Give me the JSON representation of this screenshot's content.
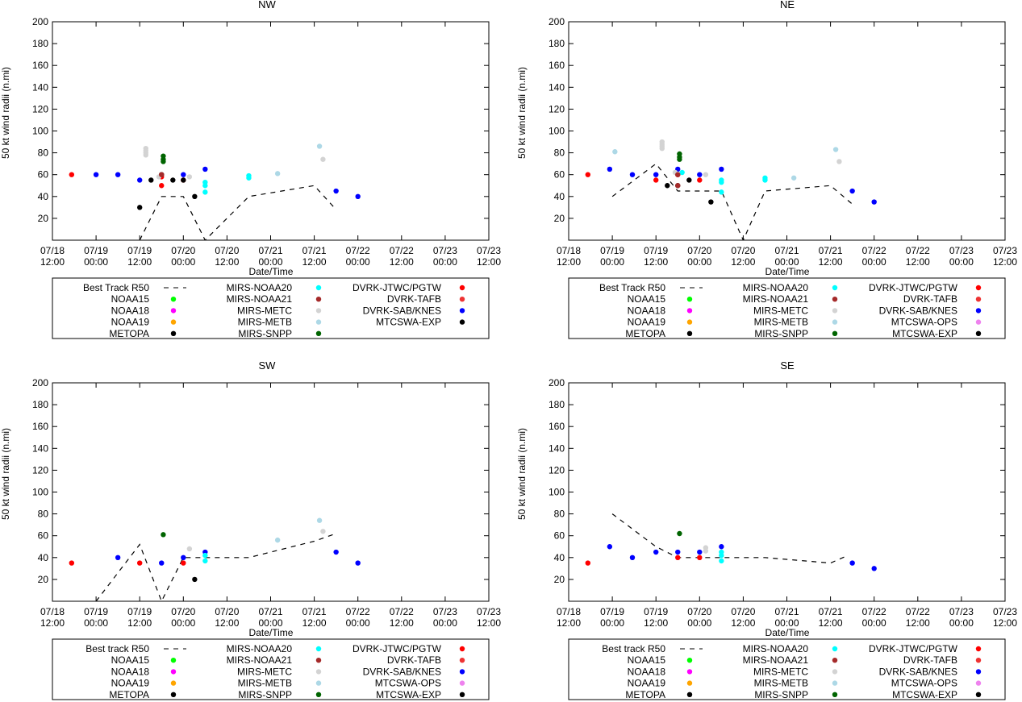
{
  "ylabel": "50 kt wind radii (n.mi)",
  "xlabel": "Date/Time",
  "ylim": [
    0,
    200
  ],
  "yticks": [
    20,
    40,
    60,
    80,
    100,
    120,
    140,
    160,
    180,
    200
  ],
  "xticks": [
    {
      "t": 0,
      "d": "07/18",
      "h": "12:00"
    },
    {
      "t": 0.5,
      "d": "07/19",
      "h": "00:00"
    },
    {
      "t": 1,
      "d": "07/19",
      "h": "12:00"
    },
    {
      "t": 1.5,
      "d": "07/20",
      "h": "00:00"
    },
    {
      "t": 2,
      "d": "07/20",
      "h": "12:00"
    },
    {
      "t": 2.5,
      "d": "07/21",
      "h": "00:00"
    },
    {
      "t": 3,
      "d": "07/21",
      "h": "12:00"
    },
    {
      "t": 3.5,
      "d": "07/22",
      "h": "00:00"
    },
    {
      "t": 4,
      "d": "07/22",
      "h": "12:00"
    },
    {
      "t": 4.5,
      "d": "07/23",
      "h": "00:00"
    },
    {
      "t": 5,
      "d": "07/23",
      "h": "12:00"
    }
  ],
  "colors": {
    "NOAA15": "#00ff00",
    "NOAA18": "#ff00ff",
    "NOAA19": "#ffa500",
    "METOPA": "#000000",
    "MIRS-NOAA20": "#00ffff",
    "MIRS-NOAA21": "#a52a2a",
    "MIRS-METC": "#d3d3d3",
    "MIRS-METB": "#add8e6",
    "MIRS-SNPP": "#006400",
    "DVRK-JTWC/PGTW": "#ff0000",
    "DVRK-TAFB": "#ee3333",
    "DVRK-SAB/KNES": "#0000ff",
    "MTCSWA-OPS": "#ee82ee",
    "MTCSWA-EXP": "#000000"
  },
  "chart_data": [
    {
      "type": "scatter",
      "title": "NW",
      "best_track_label": "Best Track R50",
      "legend_rows": [
        [
          "NOAA15",
          "MIRS-NOAA21",
          "DVRK-TAFB"
        ],
        [
          "NOAA18",
          "MIRS-METC",
          "DVRK-SAB/KNES"
        ],
        [
          "NOAA19",
          "MIRS-METB",
          "MTCSWA-EXP"
        ],
        [
          "METOPA",
          "MIRS-SNPP",
          ""
        ]
      ],
      "legend_row0": [
        "MIRS-NOAA20",
        "DVRK-JTWC/PGTW"
      ],
      "best_track": [
        [
          1.0,
          0
        ],
        [
          1.25,
          40
        ],
        [
          1.5,
          40
        ],
        [
          1.75,
          0
        ],
        [
          2.25,
          40
        ],
        [
          3.0,
          50
        ],
        [
          3.25,
          28
        ]
      ],
      "series": [
        {
          "name": "DVRK-JTWC/PGTW",
          "points": [
            [
              0.22,
              60
            ],
            [
              1.25,
              50
            ],
            [
              1.25,
              58
            ],
            [
              1.5,
              55
            ]
          ]
        },
        {
          "name": "DVRK-SAB/KNES",
          "points": [
            [
              0.5,
              60
            ],
            [
              0.75,
              60
            ],
            [
              1.0,
              55
            ],
            [
              1.5,
              60
            ],
            [
              1.75,
              65
            ],
            [
              3.25,
              45
            ],
            [
              3.5,
              40
            ]
          ]
        },
        {
          "name": "MTCSWA-EXP",
          "points": [
            [
              1.0,
              30
            ],
            [
              1.13,
              55
            ],
            [
              1.25,
              60
            ],
            [
              1.38,
              55
            ],
            [
              1.5,
              55
            ],
            [
              1.63,
              40
            ]
          ]
        },
        {
          "name": "MIRS-NOAA20",
          "points": [
            [
              1.75,
              44
            ],
            [
              1.75,
              50
            ],
            [
              1.75,
              53
            ],
            [
              2.25,
              57
            ],
            [
              2.25,
              59
            ]
          ]
        },
        {
          "name": "MIRS-SNPP",
          "points": [
            [
              1.27,
              72
            ],
            [
              1.27,
              74
            ],
            [
              1.27,
              77
            ]
          ]
        },
        {
          "name": "MIRS-METC",
          "points": [
            [
              1.07,
              78
            ],
            [
              1.07,
              80
            ],
            [
              1.07,
              82
            ],
            [
              1.07,
              84
            ],
            [
              1.22,
              58
            ],
            [
              1.57,
              58
            ],
            [
              3.1,
              74
            ]
          ]
        },
        {
          "name": "MIRS-METB",
          "points": [
            [
              2.58,
              61
            ],
            [
              3.06,
              86
            ]
          ]
        },
        {
          "name": "MIRS-NOAA21",
          "points": [
            [
              1.25,
              60
            ]
          ]
        }
      ]
    },
    {
      "type": "scatter",
      "title": "NE",
      "best_track_label": "Best Track R50",
      "legend_rows": [
        [
          "NOAA15",
          "MIRS-NOAA21",
          "DVRK-TAFB"
        ],
        [
          "NOAA18",
          "MIRS-METC",
          "DVRK-SAB/KNES"
        ],
        [
          "NOAA19",
          "MIRS-METB",
          "MTCSWA-OPS"
        ],
        [
          "METOPA",
          "MIRS-SNPP",
          "MTCSWA-EXP"
        ]
      ],
      "legend_row0": [
        "MIRS-NOAA20",
        "DVRK-JTWC/PGTW"
      ],
      "best_track": [
        [
          0.5,
          40
        ],
        [
          1.0,
          70
        ],
        [
          1.25,
          45
        ],
        [
          1.5,
          45
        ],
        [
          1.75,
          45
        ],
        [
          2.0,
          0
        ],
        [
          2.25,
          45
        ],
        [
          3.0,
          50
        ],
        [
          3.25,
          33
        ]
      ],
      "series": [
        {
          "name": "DVRK-JTWC/PGTW",
          "points": [
            [
              0.22,
              60
            ],
            [
              1.0,
              55
            ],
            [
              1.25,
              60
            ],
            [
              1.5,
              55
            ]
          ]
        },
        {
          "name": "DVRK-SAB/KNES",
          "points": [
            [
              0.47,
              65
            ],
            [
              0.73,
              60
            ],
            [
              1.0,
              60
            ],
            [
              1.25,
              65
            ],
            [
              1.5,
              60
            ],
            [
              1.75,
              65
            ],
            [
              3.25,
              45
            ],
            [
              3.5,
              35
            ]
          ]
        },
        {
          "name": "MTCSWA-EXP",
          "points": [
            [
              1.13,
              50
            ],
            [
              1.25,
              50
            ],
            [
              1.38,
              55
            ],
            [
              1.63,
              35
            ]
          ]
        },
        {
          "name": "MIRS-NOAA20",
          "points": [
            [
              1.3,
              62
            ],
            [
              1.75,
              44
            ],
            [
              1.75,
              53
            ],
            [
              1.75,
              55
            ],
            [
              2.25,
              55
            ],
            [
              2.25,
              57
            ]
          ]
        },
        {
          "name": "MIRS-SNPP",
          "points": [
            [
              1.27,
              74
            ],
            [
              1.27,
              76
            ],
            [
              1.27,
              79
            ]
          ]
        },
        {
          "name": "MIRS-METC",
          "points": [
            [
              1.07,
              84
            ],
            [
              1.07,
              86
            ],
            [
              1.07,
              88
            ],
            [
              1.07,
              90
            ],
            [
              1.22,
              62
            ],
            [
              1.57,
              60
            ],
            [
              3.1,
              72
            ]
          ]
        },
        {
          "name": "MIRS-METB",
          "points": [
            [
              0.53,
              81
            ],
            [
              2.58,
              57
            ],
            [
              3.06,
              83
            ]
          ]
        },
        {
          "name": "MIRS-NOAA21",
          "points": [
            [
              1.25,
              50
            ],
            [
              1.25,
              60
            ]
          ]
        }
      ]
    },
    {
      "type": "scatter",
      "title": "SW",
      "best_track_label": "Best track R50",
      "legend_rows": [
        [
          "NOAA15",
          "MIRS-NOAA21",
          "DVRK-TAFB"
        ],
        [
          "NOAA18",
          "MIRS-METC",
          "DVRK-SAB/KNES"
        ],
        [
          "NOAA19",
          "MIRS-METB",
          "MTCSWA-OPS"
        ],
        [
          "METOPA",
          "MIRS-SNPP",
          "MTCSWA-EXP"
        ]
      ],
      "legend_row0": [
        "MIRS-NOAA20",
        "DVRK-JTWC/PGTW"
      ],
      "best_track": [
        [
          0.5,
          0
        ],
        [
          1.0,
          52
        ],
        [
          1.25,
          0
        ],
        [
          1.5,
          40
        ],
        [
          1.75,
          40
        ],
        [
          2.25,
          40
        ],
        [
          3.0,
          55
        ],
        [
          3.25,
          62
        ]
      ],
      "series": [
        {
          "name": "DVRK-JTWC/PGTW",
          "points": [
            [
              0.22,
              35
            ],
            [
              1.0,
              35
            ],
            [
              1.5,
              35
            ]
          ]
        },
        {
          "name": "DVRK-SAB/KNES",
          "points": [
            [
              0.75,
              40
            ],
            [
              1.25,
              35
            ],
            [
              1.5,
              40
            ],
            [
              1.75,
              45
            ],
            [
              3.25,
              45
            ],
            [
              3.5,
              35
            ]
          ]
        },
        {
          "name": "MTCSWA-EXP",
          "points": [
            [
              1.63,
              20
            ]
          ]
        },
        {
          "name": "MIRS-NOAA20",
          "points": [
            [
              1.75,
              37
            ],
            [
              1.75,
              42
            ]
          ]
        },
        {
          "name": "MIRS-SNPP",
          "points": [
            [
              1.27,
              61
            ]
          ]
        },
        {
          "name": "MIRS-METC",
          "points": [
            [
              1.57,
              48
            ],
            [
              3.1,
              64
            ]
          ]
        },
        {
          "name": "MIRS-METB",
          "points": [
            [
              2.58,
              56
            ],
            [
              3.06,
              74
            ]
          ]
        }
      ]
    },
    {
      "type": "scatter",
      "title": "SE",
      "best_track_label": "Best track R50",
      "legend_rows": [
        [
          "NOAA15",
          "MIRS-NOAA21",
          "DVRK-TAFB"
        ],
        [
          "NOAA18",
          "MIRS-METC",
          "DVRK-SAB/KNES"
        ],
        [
          "NOAA19",
          "MIRS-METB",
          "MTCSWA-OPS"
        ],
        [
          "METOPA",
          "MIRS-SNPP",
          "MTCSWA-EXP"
        ]
      ],
      "legend_row0": [
        "MIRS-NOAA20",
        "DVRK-JTWC/PGTW"
      ],
      "best_track": [
        [
          0.5,
          80
        ],
        [
          1.0,
          50
        ],
        [
          1.25,
          40
        ],
        [
          1.75,
          40
        ],
        [
          2.25,
          40
        ],
        [
          3.0,
          35
        ],
        [
          3.2,
          42
        ]
      ],
      "series": [
        {
          "name": "DVRK-JTWC/PGTW",
          "points": [
            [
              0.22,
              35
            ],
            [
              1.25,
              40
            ],
            [
              1.5,
              40
            ]
          ]
        },
        {
          "name": "DVRK-SAB/KNES",
          "points": [
            [
              0.47,
              50
            ],
            [
              0.73,
              40
            ],
            [
              1.0,
              45
            ],
            [
              1.25,
              45
            ],
            [
              1.5,
              45
            ],
            [
              1.75,
              50
            ],
            [
              3.25,
              35
            ],
            [
              3.5,
              30
            ]
          ]
        },
        {
          "name": "MIRS-NOAA20",
          "points": [
            [
              1.75,
              37
            ],
            [
              1.75,
              42
            ],
            [
              1.75,
              45
            ]
          ]
        },
        {
          "name": "MIRS-SNPP",
          "points": [
            [
              1.27,
              62
            ]
          ]
        },
        {
          "name": "MIRS-METC",
          "points": [
            [
              1.57,
              46
            ],
            [
              1.57,
              49
            ]
          ]
        }
      ]
    }
  ]
}
